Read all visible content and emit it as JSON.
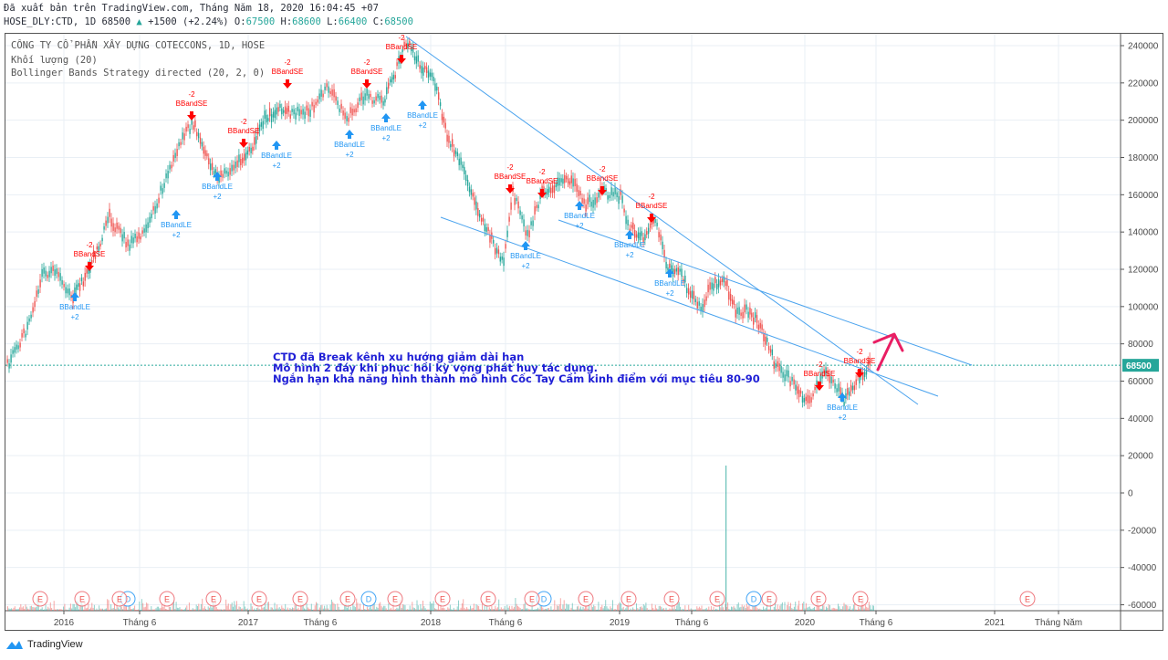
{
  "header": {
    "published": "Đã xuất bản trên TradingView.com, Tháng Năm 18, 2020 16:04:45 +07",
    "symbol_prefix": "HOSE_DLY:CTD, 1D 68500",
    "change": "+1500 (+2.24%)",
    "o_label": "O:",
    "o_value": "67500",
    "h_label": "H:",
    "h_value": "68600",
    "l_label": "L:",
    "l_value": "66400",
    "c_label": "C:",
    "c_value": "68500"
  },
  "legend": {
    "title": "CÔNG TY CỔ PHẦN XÂY DỰNG COTECCONS, 1D, HOSE",
    "volume": "Khối lượng (20)",
    "strategy": "Bollinger Bands Strategy directed (20, 2, 0)"
  },
  "annotation": {
    "line1": "CTD đã Break kênh xu hướng giảm dài hạn",
    "line2": "Mô hình 2 đáy khi phục hồi kỳ vọng phát huy tác dụng.",
    "line3": "Ngắn hạn khả năng hình thành mô hình Cốc Tay Cầm kinh điểm với mục tiêu 80-90"
  },
  "price_axis": {
    "labels": [
      "240000",
      "220000",
      "200000",
      "180000",
      "160000",
      "140000",
      "120000",
      "100000",
      "80000",
      "60000",
      "40000",
      "20000",
      "0",
      "-20000",
      "-40000",
      "-60000"
    ],
    "current_price": "68500",
    "current_color": "#26a69a"
  },
  "time_axis": {
    "labels": [
      "2016",
      "Tháng 6",
      "2017",
      "Tháng 6",
      "2018",
      "Tháng 6",
      "2019",
      "Tháng 6",
      "2020",
      "Tháng 6",
      "2021",
      "Tháng Năm"
    ]
  },
  "signals": {
    "short_label": "BBandSE",
    "short_qty": "-2",
    "long_label": "BBandLE",
    "long_qty": "+2"
  },
  "events": {
    "earnings": "E",
    "dividend": "D"
  },
  "footer": {
    "brand": "TradingView"
  },
  "colors": {
    "up": "#26a69a",
    "down": "#ef5350",
    "trendline": "#4aa3ee",
    "annotation": "#1f1fd6",
    "arrow": "#e91e63",
    "long": "#2196f3",
    "short": "#f00"
  },
  "chart_data": {
    "type": "line",
    "title": "CÔNG TY CỔ PHẦN XÂY DỰNG COTECCONS, 1D, HOSE",
    "xlabel": "",
    "ylabel": "",
    "ylim": [
      -60000,
      240000
    ],
    "x": [
      "2015-10",
      "2016-01",
      "2016-04",
      "2016-06",
      "2016-09",
      "2016-11",
      "2017-01",
      "2017-03",
      "2017-06",
      "2017-09",
      "2017-11",
      "2018-01",
      "2018-03",
      "2018-05",
      "2018-07",
      "2018-09",
      "2018-12",
      "2019-02",
      "2019-05",
      "2019-07",
      "2019-10",
      "2020-01",
      "2020-03",
      "2020-05"
    ],
    "series": [
      {
        "name": "CTD close (approx)",
        "values": [
          68000,
          118000,
          105000,
          140000,
          135000,
          200000,
          175000,
          205000,
          200000,
          215000,
          210000,
          240000,
          225000,
          160000,
          135000,
          160000,
          158000,
          140000,
          118000,
          112000,
          92000,
          55000,
          60000,
          68500
        ]
      }
    ],
    "signals": [
      {
        "type": "BBandSE",
        "qty": -2,
        "approx_price": 122000
      },
      {
        "type": "BBandLE",
        "qty": 2,
        "approx_price": 105000
      },
      {
        "type": "BBandSE",
        "qty": -2,
        "approx_price": 205000
      },
      {
        "type": "BBandLE",
        "qty": 2,
        "approx_price": 150000
      },
      {
        "type": "BBandSE",
        "qty": -2,
        "approx_price": 185000
      },
      {
        "type": "BBandLE",
        "qty": 2,
        "approx_price": 168000
      },
      {
        "type": "BBandSE",
        "qty": -2,
        "approx_price": 215000
      },
      {
        "type": "BBandLE",
        "qty": 2,
        "approx_price": 195000
      },
      {
        "type": "BBandSE",
        "qty": -2,
        "approx_price": 210000
      },
      {
        "type": "BBandLE",
        "qty": 2,
        "approx_price": 202000
      },
      {
        "type": "BBandSE",
        "qty": -2,
        "approx_price": 235000
      },
      {
        "type": "BBandLE",
        "qty": 2,
        "approx_price": 210000
      },
      {
        "type": "BBandSE",
        "qty": -2,
        "approx_price": 162000
      },
      {
        "type": "BBandLE",
        "qty": 2,
        "approx_price": 132000
      },
      {
        "type": "BBandSE",
        "qty": -2,
        "approx_price": 162000
      },
      {
        "type": "BBandLE",
        "qty": 2,
        "approx_price": 150000
      },
      {
        "type": "BBandSE",
        "qty": -2,
        "approx_price": 160000
      },
      {
        "type": "BBandLE",
        "qty": 2,
        "approx_price": 135000
      },
      {
        "type": "BBandSE",
        "qty": -2,
        "approx_price": 146000
      },
      {
        "type": "BBandLE",
        "qty": 2,
        "approx_price": 117000
      },
      {
        "type": "BBandSE",
        "qty": -2,
        "approx_price": 58000
      },
      {
        "type": "BBandLE",
        "qty": 2,
        "approx_price": 50000
      },
      {
        "type": "BBandSE",
        "qty": -2,
        "approx_price": 64000
      }
    ],
    "trendlines": [
      {
        "from": [
          "2017-11",
          244000
        ],
        "to": [
          "2020-09",
          47000
        ]
      },
      {
        "from": [
          "2018-01",
          148000
        ],
        "to": [
          "2020-10",
          52000
        ]
      },
      {
        "from": [
          "2018-10",
          147000
        ],
        "to": [
          "2020-12",
          79000
        ]
      }
    ],
    "last_price": 68500,
    "legend_position": "top-left"
  }
}
